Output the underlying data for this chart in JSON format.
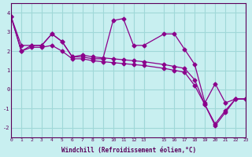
{
  "xlabel": "Windchill (Refroidissement éolien,°C)",
  "ylabel": "",
  "xlim": [
    0,
    23
  ],
  "ylim": [
    -2.5,
    4.5
  ],
  "yticks": [
    -2,
    -1,
    0,
    1,
    2,
    3,
    4
  ],
  "xticks": [
    0,
    1,
    2,
    3,
    4,
    5,
    6,
    7,
    8,
    9,
    10,
    11,
    12,
    13,
    15,
    16,
    17,
    18,
    19,
    20,
    21,
    22,
    23
  ],
  "background_color": "#c8eff0",
  "grid_color": "#a0d8d8",
  "line_color": "#8b008b",
  "series1_x": [
    0,
    1,
    2,
    3,
    4,
    5,
    6,
    7,
    8,
    9,
    10,
    11,
    12,
    13,
    15,
    16,
    17,
    18,
    19,
    20,
    21,
    22,
    23
  ],
  "series1_y": [
    3.8,
    2.3,
    2.3,
    2.3,
    2.9,
    2.5,
    1.7,
    1.7,
    1.6,
    1.6,
    3.6,
    3.7,
    2.3,
    2.3,
    2.9,
    2.9,
    2.1,
    1.3,
    -0.7,
    0.3,
    -0.7,
    -0.5,
    -0.5
  ],
  "series2_x": [
    0,
    1,
    2,
    3,
    4,
    5,
    6,
    7,
    8,
    9,
    10,
    11,
    12,
    13,
    15,
    16,
    17,
    18,
    19,
    20,
    21,
    22,
    23
  ],
  "series2_y": [
    3.8,
    2.0,
    2.3,
    2.3,
    2.9,
    2.5,
    1.7,
    1.8,
    1.7,
    1.65,
    1.6,
    1.55,
    1.5,
    1.45,
    1.3,
    1.2,
    1.1,
    0.5,
    -0.8,
    -1.8,
    -1.1,
    -0.5,
    -0.5
  ],
  "series3_x": [
    0,
    1,
    2,
    3,
    4,
    5,
    6,
    7,
    8,
    9,
    10,
    11,
    12,
    13,
    15,
    16,
    17,
    18,
    19,
    20,
    21,
    22,
    23
  ],
  "series3_y": [
    3.8,
    2.0,
    2.2,
    2.2,
    2.3,
    2.0,
    1.6,
    1.6,
    1.5,
    1.45,
    1.4,
    1.35,
    1.3,
    1.25,
    1.1,
    1.0,
    0.9,
    0.2,
    -0.8,
    -1.9,
    -1.2,
    -0.5,
    -0.5
  ]
}
